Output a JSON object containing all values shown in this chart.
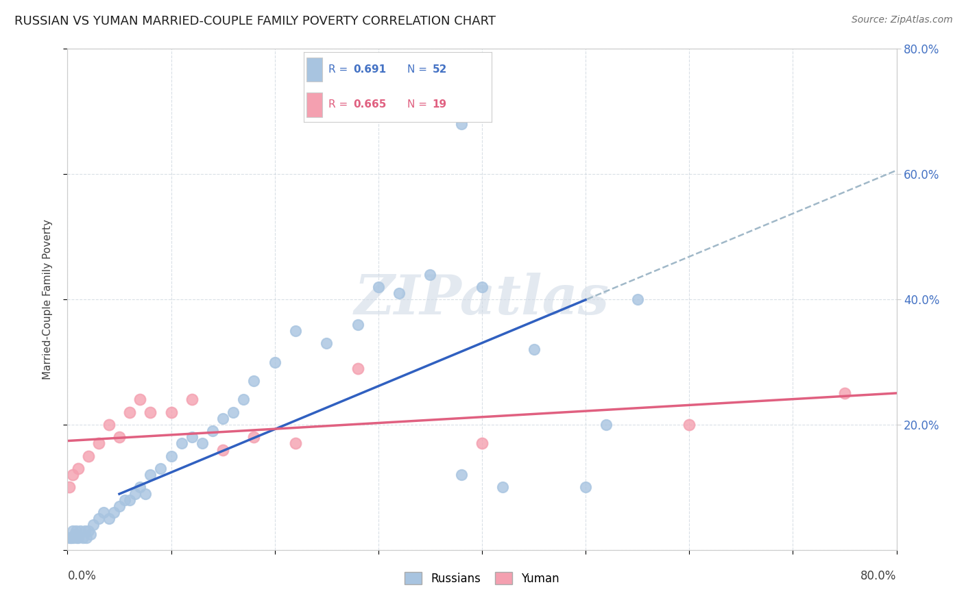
{
  "title": "RUSSIAN VS YUMAN MARRIED-COUPLE FAMILY POVERTY CORRELATION CHART",
  "source": "Source: ZipAtlas.com",
  "ylabel": "Married-Couple Family Poverty",
  "xlim": [
    0.0,
    0.8
  ],
  "ylim": [
    0.0,
    0.8
  ],
  "ytick_labels_right": [
    "80.0%",
    "60.0%",
    "40.0%",
    "20.0%"
  ],
  "ytick_positions_right": [
    0.8,
    0.6,
    0.4,
    0.2
  ],
  "russian_color": "#a8c4e0",
  "yuman_color": "#f4a0b0",
  "russian_line_color": "#3060c0",
  "yuman_line_color": "#e06080",
  "dashed_line_color": "#a0b8c8",
  "watermark": "ZIPatlas",
  "background_color": "#ffffff",
  "grid_color": "#d0d8e0",
  "russians_x": [
    0.002,
    0.003,
    0.004,
    0.005,
    0.006,
    0.007,
    0.008,
    0.009,
    0.01,
    0.012,
    0.015,
    0.017,
    0.018,
    0.02,
    0.022,
    0.025,
    0.03,
    0.035,
    0.04,
    0.045,
    0.05,
    0.055,
    0.06,
    0.065,
    0.07,
    0.075,
    0.08,
    0.09,
    0.1,
    0.11,
    0.12,
    0.13,
    0.14,
    0.15,
    0.16,
    0.17,
    0.18,
    0.2,
    0.22,
    0.25,
    0.28,
    0.3,
    0.32,
    0.35,
    0.38,
    0.4,
    0.42,
    0.45,
    0.5,
    0.52,
    0.55,
    0.38
  ],
  "russians_y": [
    0.02,
    0.02,
    0.02,
    0.03,
    0.02,
    0.025,
    0.03,
    0.02,
    0.02,
    0.03,
    0.02,
    0.03,
    0.02,
    0.03,
    0.025,
    0.04,
    0.05,
    0.06,
    0.05,
    0.06,
    0.07,
    0.08,
    0.08,
    0.09,
    0.1,
    0.09,
    0.12,
    0.13,
    0.15,
    0.17,
    0.18,
    0.17,
    0.19,
    0.21,
    0.22,
    0.24,
    0.27,
    0.3,
    0.35,
    0.33,
    0.36,
    0.42,
    0.41,
    0.44,
    0.12,
    0.42,
    0.1,
    0.32,
    0.1,
    0.2,
    0.4,
    0.68
  ],
  "yuman_x": [
    0.002,
    0.005,
    0.01,
    0.02,
    0.03,
    0.04,
    0.05,
    0.06,
    0.07,
    0.08,
    0.1,
    0.12,
    0.15,
    0.18,
    0.22,
    0.28,
    0.4,
    0.6,
    0.75
  ],
  "yuman_y": [
    0.1,
    0.12,
    0.13,
    0.15,
    0.17,
    0.2,
    0.18,
    0.22,
    0.24,
    0.22,
    0.22,
    0.24,
    0.16,
    0.18,
    0.17,
    0.29,
    0.17,
    0.2,
    0.25
  ],
  "legend_R_russian": "0.691",
  "legend_N_russian": "52",
  "legend_R_yuman": "0.665",
  "legend_N_yuman": "19",
  "russian_text_color": "#4472c4",
  "yuman_text_color": "#e06080"
}
